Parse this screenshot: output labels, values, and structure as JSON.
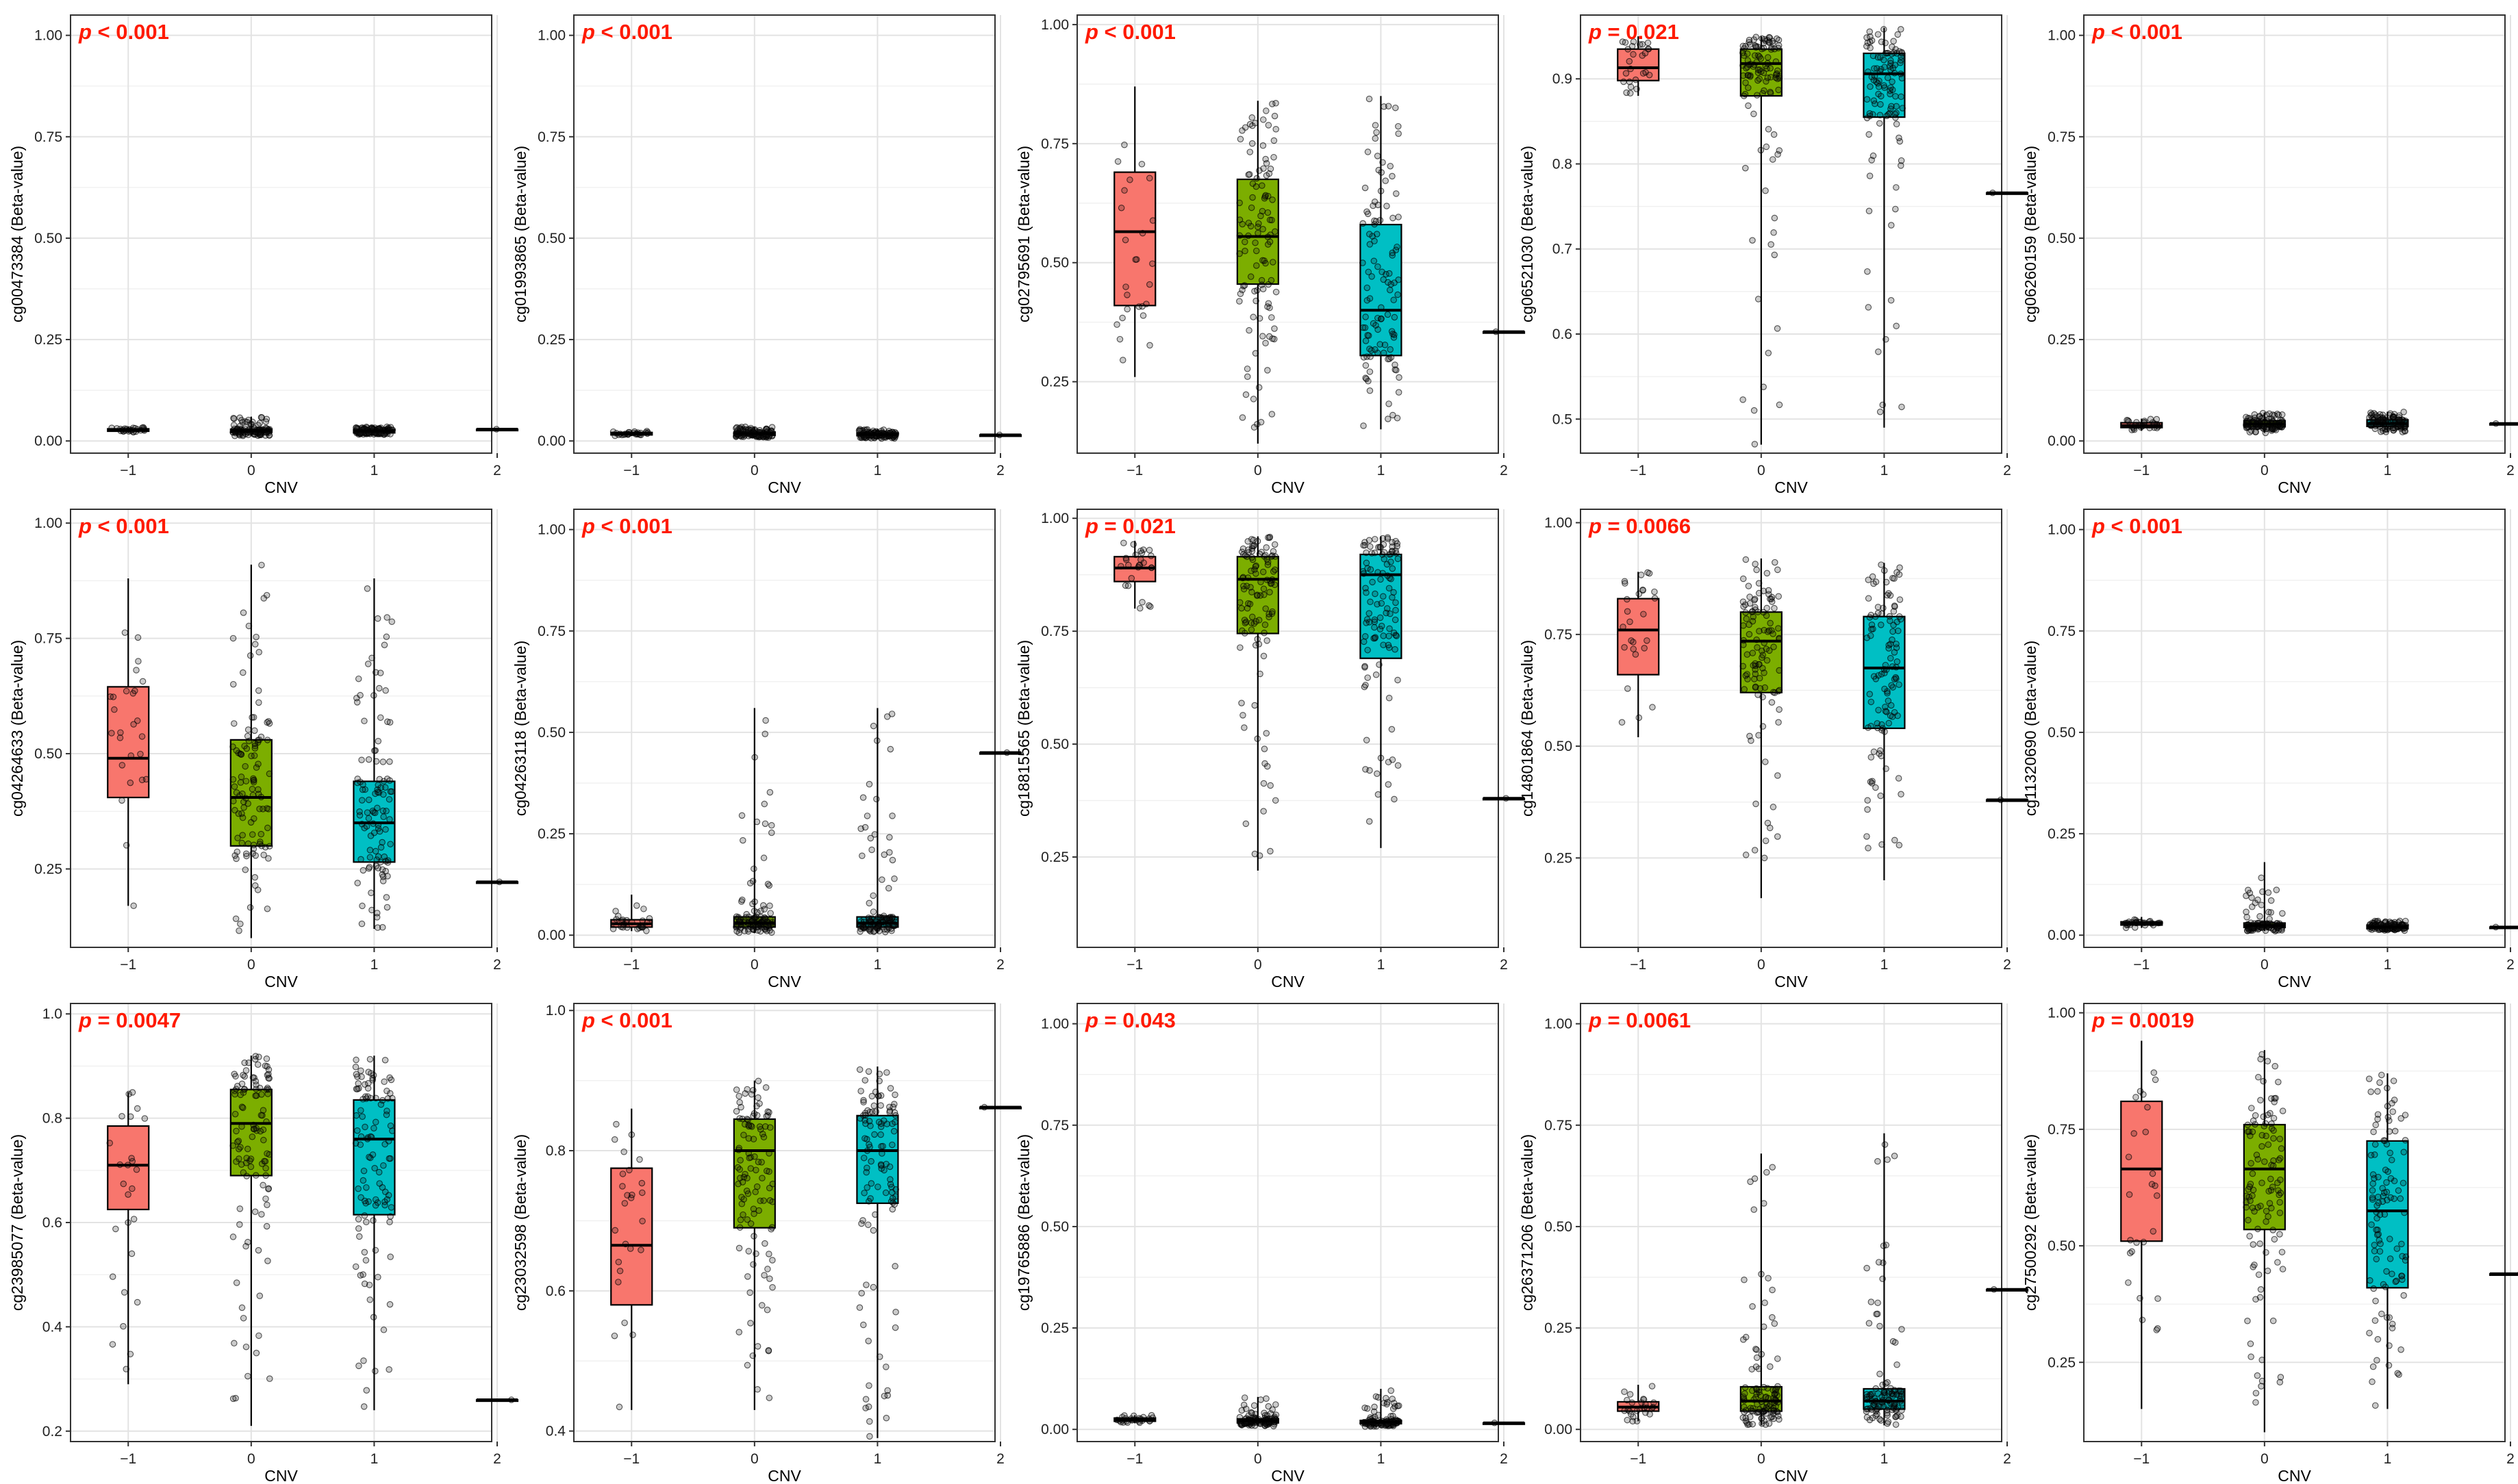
{
  "chart_data": {
    "type": "boxplot-grid",
    "layout": "3 rows x 5 columns",
    "xlabel": "CNV",
    "categories": [
      "-1",
      "0",
      "1",
      "2"
    ],
    "colors": {
      "-1": "#F8766D",
      "0": "#7CAE00",
      "1": "#00BFC4",
      "2": "#C77CFF"
    },
    "panels": [
      {
        "ylabel": "cg00473384 (Beta-value)",
        "p_label": "p < 0.001",
        "ylim": [
          -0.03,
          1.05
        ],
        "yticks": [
          "0.00",
          "0.25",
          "0.50",
          "0.75",
          "1.00"
        ],
        "groups": [
          {
            "cnv": "-1",
            "q1": 0.024,
            "median": 0.027,
            "q3": 0.03,
            "min": 0.02,
            "max": 0.034
          },
          {
            "cnv": "0",
            "q1": 0.021,
            "median": 0.025,
            "q3": 0.029,
            "min": 0.012,
            "max": 0.06
          },
          {
            "cnv": "1",
            "q1": 0.02,
            "median": 0.024,
            "q3": 0.028,
            "min": 0.015,
            "max": 0.035
          },
          {
            "cnv": "2",
            "q1": 0.029,
            "median": 0.029,
            "q3": 0.029,
            "min": 0.029,
            "max": 0.029
          }
        ]
      },
      {
        "ylabel": "cg01993865 (Beta-value)",
        "p_label": "p < 0.001",
        "ylim": [
          -0.03,
          1.05
        ],
        "yticks": [
          "0.00",
          "0.25",
          "0.50",
          "0.75",
          "1.00"
        ],
        "groups": [
          {
            "cnv": "-1",
            "q1": 0.015,
            "median": 0.018,
            "q3": 0.021,
            "min": 0.012,
            "max": 0.025
          },
          {
            "cnv": "0",
            "q1": 0.014,
            "median": 0.018,
            "q3": 0.022,
            "min": 0.008,
            "max": 0.035
          },
          {
            "cnv": "1",
            "q1": 0.013,
            "median": 0.016,
            "q3": 0.02,
            "min": 0.006,
            "max": 0.03
          },
          {
            "cnv": "2",
            "q1": 0.015,
            "median": 0.015,
            "q3": 0.015,
            "min": 0.015,
            "max": 0.015
          }
        ]
      },
      {
        "ylabel": "cg02795691 (Beta-value)",
        "p_label": "p < 0.001",
        "ylim": [
          0.1,
          1.02
        ],
        "yticks": [
          "0.25",
          "0.50",
          "0.75",
          "1.00"
        ],
        "groups": [
          {
            "cnv": "-1",
            "q1": 0.41,
            "median": 0.565,
            "q3": 0.69,
            "min": 0.26,
            "max": 0.87
          },
          {
            "cnv": "0",
            "q1": 0.455,
            "median": 0.555,
            "q3": 0.675,
            "min": 0.12,
            "max": 0.84
          },
          {
            "cnv": "1",
            "q1": 0.305,
            "median": 0.4,
            "q3": 0.58,
            "min": 0.15,
            "max": 0.85
          },
          {
            "cnv": "2",
            "q1": 0.355,
            "median": 0.355,
            "q3": 0.355,
            "min": 0.355,
            "max": 0.355
          }
        ]
      },
      {
        "ylabel": "cg06521030 (Beta-value)",
        "p_label": "p = 0.021",
        "ylim": [
          0.46,
          0.975
        ],
        "yticks": [
          "0.5",
          "0.6",
          "0.7",
          "0.8",
          "0.9"
        ],
        "groups": [
          {
            "cnv": "-1",
            "q1": 0.898,
            "median": 0.913,
            "q3": 0.935,
            "min": 0.88,
            "max": 0.95
          },
          {
            "cnv": "0",
            "q1": 0.88,
            "median": 0.918,
            "q3": 0.935,
            "min": 0.47,
            "max": 0.95
          },
          {
            "cnv": "1",
            "q1": 0.855,
            "median": 0.906,
            "q3": 0.93,
            "min": 0.49,
            "max": 0.96
          },
          {
            "cnv": "2",
            "q1": 0.766,
            "median": 0.766,
            "q3": 0.766,
            "min": 0.766,
            "max": 0.766
          }
        ]
      },
      {
        "ylabel": "cg06260159 (Beta-value)",
        "p_label": "p < 0.001",
        "ylim": [
          -0.03,
          1.05
        ],
        "yticks": [
          "0.00",
          "0.25",
          "0.50",
          "0.75",
          "1.00"
        ],
        "groups": [
          {
            "cnv": "-1",
            "q1": 0.033,
            "median": 0.038,
            "q3": 0.045,
            "min": 0.025,
            "max": 0.055
          },
          {
            "cnv": "0",
            "q1": 0.035,
            "median": 0.042,
            "q3": 0.05,
            "min": 0.02,
            "max": 0.07
          },
          {
            "cnv": "1",
            "q1": 0.036,
            "median": 0.043,
            "q3": 0.052,
            "min": 0.022,
            "max": 0.072
          },
          {
            "cnv": "2",
            "q1": 0.043,
            "median": 0.043,
            "q3": 0.043,
            "min": 0.043,
            "max": 0.043
          }
        ]
      },
      {
        "ylabel": "cg04264633 (Beta-value)",
        "p_label": "p < 0.001",
        "ylim": [
          0.08,
          1.03
        ],
        "yticks": [
          "0.25",
          "0.50",
          "0.75",
          "1.00"
        ],
        "groups": [
          {
            "cnv": "-1",
            "q1": 0.405,
            "median": 0.49,
            "q3": 0.645,
            "min": 0.17,
            "max": 0.88
          },
          {
            "cnv": "0",
            "q1": 0.3,
            "median": 0.405,
            "q3": 0.53,
            "min": 0.1,
            "max": 0.91
          },
          {
            "cnv": "1",
            "q1": 0.265,
            "median": 0.35,
            "q3": 0.44,
            "min": 0.12,
            "max": 0.88
          },
          {
            "cnv": "2",
            "q1": 0.222,
            "median": 0.222,
            "q3": 0.222,
            "min": 0.222,
            "max": 0.222
          }
        ]
      },
      {
        "ylabel": "cg04263118 (Beta-value)",
        "p_label": "p < 0.001",
        "ylim": [
          -0.03,
          1.05
        ],
        "yticks": [
          "0.00",
          "0.25",
          "0.50",
          "0.75",
          "1.00"
        ],
        "groups": [
          {
            "cnv": "-1",
            "q1": 0.02,
            "median": 0.028,
            "q3": 0.038,
            "min": 0.01,
            "max": 0.1
          },
          {
            "cnv": "0",
            "q1": 0.02,
            "median": 0.03,
            "q3": 0.045,
            "min": 0.005,
            "max": 0.56
          },
          {
            "cnv": "1",
            "q1": 0.02,
            "median": 0.03,
            "q3": 0.045,
            "min": 0.005,
            "max": 0.56
          },
          {
            "cnv": "2",
            "q1": 0.45,
            "median": 0.45,
            "q3": 0.45,
            "min": 0.45,
            "max": 0.45
          }
        ]
      },
      {
        "ylabel": "cg18815565 (Beta-value)",
        "p_label": "p = 0.021",
        "ylim": [
          0.05,
          1.02
        ],
        "yticks": [
          "0.25",
          "0.50",
          "0.75",
          "1.00"
        ],
        "groups": [
          {
            "cnv": "-1",
            "q1": 0.86,
            "median": 0.89,
            "q3": 0.915,
            "min": 0.8,
            "max": 0.95
          },
          {
            "cnv": "0",
            "q1": 0.745,
            "median": 0.865,
            "q3": 0.915,
            "min": 0.22,
            "max": 0.96
          },
          {
            "cnv": "1",
            "q1": 0.69,
            "median": 0.875,
            "q3": 0.92,
            "min": 0.27,
            "max": 0.96
          },
          {
            "cnv": "2",
            "q1": 0.38,
            "median": 0.38,
            "q3": 0.38,
            "min": 0.38,
            "max": 0.38
          }
        ]
      },
      {
        "ylabel": "cg14801864 (Beta-value)",
        "p_label": "p = 0.0066",
        "ylim": [
          0.05,
          1.03
        ],
        "yticks": [
          "0.25",
          "0.50",
          "0.75",
          "1.00"
        ],
        "groups": [
          {
            "cnv": "-1",
            "q1": 0.66,
            "median": 0.76,
            "q3": 0.83,
            "min": 0.52,
            "max": 0.89
          },
          {
            "cnv": "0",
            "q1": 0.62,
            "median": 0.735,
            "q3": 0.8,
            "min": 0.16,
            "max": 0.92
          },
          {
            "cnv": "1",
            "q1": 0.54,
            "median": 0.675,
            "q3": 0.79,
            "min": 0.2,
            "max": 0.91
          },
          {
            "cnv": "2",
            "q1": 0.38,
            "median": 0.38,
            "q3": 0.38,
            "min": 0.38,
            "max": 0.38
          }
        ]
      },
      {
        "ylabel": "cg11320690 (Beta-value)",
        "p_label": "p < 0.001",
        "ylim": [
          -0.03,
          1.05
        ],
        "yticks": [
          "0.00",
          "0.25",
          "0.50",
          "0.75",
          "1.00"
        ],
        "groups": [
          {
            "cnv": "-1",
            "q1": 0.025,
            "median": 0.029,
            "q3": 0.033,
            "min": 0.018,
            "max": 0.045
          },
          {
            "cnv": "0",
            "q1": 0.019,
            "median": 0.024,
            "q3": 0.03,
            "min": 0.01,
            "max": 0.18
          },
          {
            "cnv": "1",
            "q1": 0.016,
            "median": 0.02,
            "q3": 0.025,
            "min": 0.01,
            "max": 0.035
          },
          {
            "cnv": "2",
            "q1": 0.02,
            "median": 0.02,
            "q3": 0.02,
            "min": 0.02,
            "max": 0.02
          }
        ]
      },
      {
        "ylabel": "cg23985077 (Beta-value)",
        "p_label": "p = 0.0047",
        "ylim": [
          0.18,
          1.02
        ],
        "yticks": [
          "0.2",
          "0.4",
          "0.6",
          "0.8",
          "1.0"
        ],
        "groups": [
          {
            "cnv": "-1",
            "q1": 0.625,
            "median": 0.71,
            "q3": 0.785,
            "min": 0.29,
            "max": 0.85
          },
          {
            "cnv": "0",
            "q1": 0.69,
            "median": 0.79,
            "q3": 0.855,
            "min": 0.21,
            "max": 0.92
          },
          {
            "cnv": "1",
            "q1": 0.615,
            "median": 0.76,
            "q3": 0.835,
            "min": 0.24,
            "max": 0.92
          },
          {
            "cnv": "2",
            "q1": 0.26,
            "median": 0.26,
            "q3": 0.26,
            "min": 0.26,
            "max": 0.26
          }
        ]
      },
      {
        "ylabel": "cg23032598 (Beta-value)",
        "p_label": "p < 0.001",
        "ylim": [
          0.385,
          1.01
        ],
        "yticks": [
          "0.4",
          "0.6",
          "0.8",
          "1.0"
        ],
        "groups": [
          {
            "cnv": "-1",
            "q1": 0.58,
            "median": 0.665,
            "q3": 0.775,
            "min": 0.43,
            "max": 0.86
          },
          {
            "cnv": "0",
            "q1": 0.69,
            "median": 0.8,
            "q3": 0.845,
            "min": 0.43,
            "max": 0.9
          },
          {
            "cnv": "1",
            "q1": 0.725,
            "median": 0.8,
            "q3": 0.85,
            "min": 0.39,
            "max": 0.92
          },
          {
            "cnv": "2",
            "q1": 0.862,
            "median": 0.862,
            "q3": 0.862,
            "min": 0.862,
            "max": 0.862
          }
        ]
      },
      {
        "ylabel": "cg19765886 (Beta-value)",
        "p_label": "p = 0.043",
        "ylim": [
          -0.03,
          1.05
        ],
        "yticks": [
          "0.00",
          "0.25",
          "0.50",
          "0.75",
          "1.00"
        ],
        "groups": [
          {
            "cnv": "-1",
            "q1": 0.02,
            "median": 0.024,
            "q3": 0.028,
            "min": 0.015,
            "max": 0.035
          },
          {
            "cnv": "0",
            "q1": 0.016,
            "median": 0.021,
            "q3": 0.026,
            "min": 0.008,
            "max": 0.08
          },
          {
            "cnv": "1",
            "q1": 0.014,
            "median": 0.018,
            "q3": 0.022,
            "min": 0.007,
            "max": 0.1
          },
          {
            "cnv": "2",
            "q1": 0.016,
            "median": 0.016,
            "q3": 0.016,
            "min": 0.016,
            "max": 0.016
          }
        ]
      },
      {
        "ylabel": "cg26371206 (Beta-value)",
        "p_label": "p = 0.0061",
        "ylim": [
          -0.03,
          1.05
        ],
        "yticks": [
          "0.00",
          "0.25",
          "0.50",
          "0.75",
          "1.00"
        ],
        "groups": [
          {
            "cnv": "-1",
            "q1": 0.045,
            "median": 0.055,
            "q3": 0.068,
            "min": 0.02,
            "max": 0.11
          },
          {
            "cnv": "0",
            "q1": 0.045,
            "median": 0.07,
            "q3": 0.105,
            "min": 0.01,
            "max": 0.68
          },
          {
            "cnv": "1",
            "q1": 0.05,
            "median": 0.07,
            "q3": 0.1,
            "min": 0.01,
            "max": 0.73
          },
          {
            "cnv": "2",
            "q1": 0.345,
            "median": 0.345,
            "q3": 0.345,
            "min": 0.345,
            "max": 0.345
          }
        ]
      },
      {
        "ylabel": "cg27500292 (Beta-value)",
        "p_label": "p = 0.0019",
        "ylim": [
          0.08,
          1.02
        ],
        "yticks": [
          "0.25",
          "0.50",
          "0.75",
          "1.00"
        ],
        "groups": [
          {
            "cnv": "-1",
            "q1": 0.51,
            "median": 0.665,
            "q3": 0.81,
            "min": 0.15,
            "max": 0.94
          },
          {
            "cnv": "0",
            "q1": 0.535,
            "median": 0.665,
            "q3": 0.76,
            "min": 0.1,
            "max": 0.92
          },
          {
            "cnv": "1",
            "q1": 0.41,
            "median": 0.575,
            "q3": 0.725,
            "min": 0.15,
            "max": 0.87
          },
          {
            "cnv": "2",
            "q1": 0.44,
            "median": 0.44,
            "q3": 0.44,
            "min": 0.44,
            "max": 0.44
          }
        ]
      }
    ]
  }
}
